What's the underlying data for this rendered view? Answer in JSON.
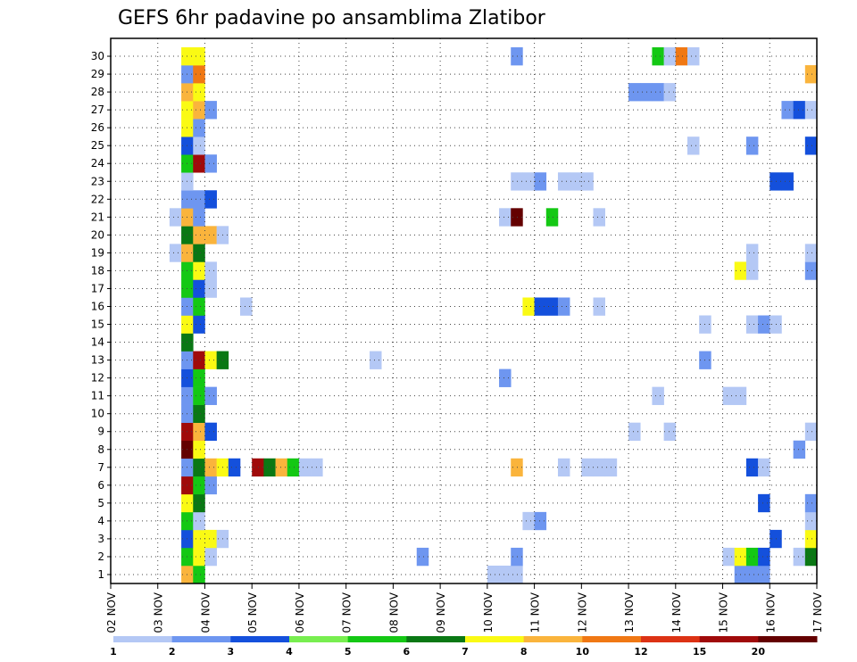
{
  "chart_data": {
    "type": "heatmap",
    "title": "GEFS 6hr padavine po ansamblima Zlatibor",
    "xlabel": "",
    "ylabel": "",
    "x_ticks": [
      "02 NOV",
      "03 NOV",
      "04 NOV",
      "05 NOV",
      "06 NOV",
      "07 NOV",
      "08 NOV",
      "09 NOV",
      "10 NOV",
      "11 NOV",
      "12 NOV",
      "13 NOV",
      "14 NOV",
      "15 NOV",
      "16 NOV",
      "17 NOV"
    ],
    "y_ticks": [
      "1",
      "2",
      "3",
      "4",
      "5",
      "6",
      "7",
      "8",
      "9",
      "10",
      "11",
      "12",
      "13",
      "14",
      "15",
      "16",
      "17",
      "18",
      "19",
      "20",
      "21",
      "22",
      "23",
      "24",
      "25",
      "26",
      "27",
      "28",
      "29",
      "30"
    ],
    "x_range_steps": [
      0,
      60
    ],
    "y_range_members": [
      0,
      30
    ],
    "step_hours": 6,
    "legend": {
      "labels": [
        "1",
        "2",
        "3",
        "4",
        "5",
        "6",
        "7",
        "8",
        "10",
        "12",
        "15",
        "20"
      ],
      "colors": [
        "#b4c8f5",
        "#6e96f0",
        "#1450dc",
        "#78ee50",
        "#14c814",
        "#0a7814",
        "#fafa14",
        "#fab43c",
        "#f07814",
        "#dc3214",
        "#a00a0a",
        "#640000"
      ]
    },
    "cells": [
      {
        "m": 0,
        "s": 6,
        "v": 8
      },
      {
        "m": 0,
        "s": 7,
        "v": 5
      },
      {
        "m": 0,
        "s": 32,
        "v": 1
      },
      {
        "m": 0,
        "s": 33,
        "v": 1
      },
      {
        "m": 0,
        "s": 34,
        "v": 1
      },
      {
        "m": 0,
        "s": 53,
        "v": 2
      },
      {
        "m": 0,
        "s": 54,
        "v": 2
      },
      {
        "m": 0,
        "s": 55,
        "v": 2
      },
      {
        "m": 1,
        "s": 6,
        "v": 5
      },
      {
        "m": 1,
        "s": 7,
        "v": 7
      },
      {
        "m": 1,
        "s": 8,
        "v": 1
      },
      {
        "m": 1,
        "s": 26,
        "v": 2
      },
      {
        "m": 1,
        "s": 34,
        "v": 2
      },
      {
        "m": 1,
        "s": 52,
        "v": 1
      },
      {
        "m": 1,
        "s": 53,
        "v": 7
      },
      {
        "m": 1,
        "s": 54,
        "v": 5
      },
      {
        "m": 1,
        "s": 55,
        "v": 3
      },
      {
        "m": 1,
        "s": 58,
        "v": 1
      },
      {
        "m": 1,
        "s": 59,
        "v": 6
      },
      {
        "m": 2,
        "s": 6,
        "v": 3
      },
      {
        "m": 2,
        "s": 7,
        "v": 7
      },
      {
        "m": 2,
        "s": 8,
        "v": 7
      },
      {
        "m": 2,
        "s": 9,
        "v": 1
      },
      {
        "m": 2,
        "s": 56,
        "v": 3
      },
      {
        "m": 2,
        "s": 59,
        "v": 7
      },
      {
        "m": 3,
        "s": 6,
        "v": 5
      },
      {
        "m": 3,
        "s": 7,
        "v": 1
      },
      {
        "m": 3,
        "s": 35,
        "v": 1
      },
      {
        "m": 3,
        "s": 36,
        "v": 2
      },
      {
        "m": 3,
        "s": 59,
        "v": 1
      },
      {
        "m": 4,
        "s": 6,
        "v": 7
      },
      {
        "m": 4,
        "s": 7,
        "v": 6
      },
      {
        "m": 4,
        "s": 55,
        "v": 3
      },
      {
        "m": 4,
        "s": 59,
        "v": 2
      },
      {
        "m": 5,
        "s": 6,
        "v": 15
      },
      {
        "m": 5,
        "s": 7,
        "v": 5
      },
      {
        "m": 5,
        "s": 8,
        "v": 2
      },
      {
        "m": 6,
        "s": 6,
        "v": 2
      },
      {
        "m": 6,
        "s": 7,
        "v": 6
      },
      {
        "m": 6,
        "s": 8,
        "v": 8
      },
      {
        "m": 6,
        "s": 9,
        "v": 7
      },
      {
        "m": 6,
        "s": 10,
        "v": 3
      },
      {
        "m": 6,
        "s": 12,
        "v": 15
      },
      {
        "m": 6,
        "s": 13,
        "v": 6
      },
      {
        "m": 6,
        "s": 14,
        "v": 8
      },
      {
        "m": 6,
        "s": 15,
        "v": 5
      },
      {
        "m": 6,
        "s": 16,
        "v": 1
      },
      {
        "m": 6,
        "s": 17,
        "v": 1
      },
      {
        "m": 6,
        "s": 34,
        "v": 8
      },
      {
        "m": 6,
        "s": 38,
        "v": 1
      },
      {
        "m": 6,
        "s": 40,
        "v": 1
      },
      {
        "m": 6,
        "s": 41,
        "v": 1
      },
      {
        "m": 6,
        "s": 42,
        "v": 1
      },
      {
        "m": 6,
        "s": 54,
        "v": 3
      },
      {
        "m": 6,
        "s": 55,
        "v": 1
      },
      {
        "m": 7,
        "s": 6,
        "v": 20
      },
      {
        "m": 7,
        "s": 7,
        "v": 7.5
      },
      {
        "m": 7,
        "s": 58,
        "v": 2
      },
      {
        "m": 8,
        "s": 6,
        "v": 15
      },
      {
        "m": 8,
        "s": 7,
        "v": 8
      },
      {
        "m": 8,
        "s": 8,
        "v": 3
      },
      {
        "m": 8,
        "s": 44,
        "v": 1
      },
      {
        "m": 8,
        "s": 47,
        "v": 1
      },
      {
        "m": 8,
        "s": 59,
        "v": 1
      },
      {
        "m": 9,
        "s": 6,
        "v": 2
      },
      {
        "m": 9,
        "s": 7,
        "v": 6
      },
      {
        "m": 10,
        "s": 6,
        "v": 2
      },
      {
        "m": 10,
        "s": 7,
        "v": 5
      },
      {
        "m": 10,
        "s": 8,
        "v": 2
      },
      {
        "m": 10,
        "s": 46,
        "v": 1
      },
      {
        "m": 10,
        "s": 52,
        "v": 1
      },
      {
        "m": 10,
        "s": 53,
        "v": 1
      },
      {
        "m": 11,
        "s": 6,
        "v": 3
      },
      {
        "m": 11,
        "s": 7,
        "v": 5
      },
      {
        "m": 11,
        "s": 33,
        "v": 2
      },
      {
        "m": 12,
        "s": 6,
        "v": 2
      },
      {
        "m": 12,
        "s": 7,
        "v": 15
      },
      {
        "m": 12,
        "s": 8,
        "v": 7
      },
      {
        "m": 12,
        "s": 9,
        "v": 6
      },
      {
        "m": 12,
        "s": 22,
        "v": 1
      },
      {
        "m": 12,
        "s": 50,
        "v": 2
      },
      {
        "m": 13,
        "s": 6,
        "v": 6
      },
      {
        "m": 14,
        "s": 6,
        "v": 7
      },
      {
        "m": 14,
        "s": 7,
        "v": 3
      },
      {
        "m": 14,
        "s": 50,
        "v": 1
      },
      {
        "m": 14,
        "s": 54,
        "v": 1
      },
      {
        "m": 14,
        "s": 55,
        "v": 2
      },
      {
        "m": 14,
        "s": 56,
        "v": 1
      },
      {
        "m": 15,
        "s": 6,
        "v": 2
      },
      {
        "m": 15,
        "s": 7,
        "v": 5
      },
      {
        "m": 15,
        "s": 11,
        "v": 1
      },
      {
        "m": 15,
        "s": 35,
        "v": 7
      },
      {
        "m": 15,
        "s": 36,
        "v": 3
      },
      {
        "m": 15,
        "s": 37,
        "v": 3
      },
      {
        "m": 15,
        "s": 38,
        "v": 2
      },
      {
        "m": 15,
        "s": 41,
        "v": 1
      },
      {
        "m": 16,
        "s": 6,
        "v": 5
      },
      {
        "m": 16,
        "s": 7,
        "v": 3
      },
      {
        "m": 16,
        "s": 8,
        "v": 1
      },
      {
        "m": 17,
        "s": 6,
        "v": 5
      },
      {
        "m": 17,
        "s": 7,
        "v": 7.5
      },
      {
        "m": 17,
        "s": 8,
        "v": 1
      },
      {
        "m": 17,
        "s": 53,
        "v": 7
      },
      {
        "m": 17,
        "s": 54,
        "v": 1
      },
      {
        "m": 17,
        "s": 59,
        "v": 2
      },
      {
        "m": 18,
        "s": 5,
        "v": 1
      },
      {
        "m": 18,
        "s": 6,
        "v": 8
      },
      {
        "m": 18,
        "s": 7,
        "v": 6
      },
      {
        "m": 18,
        "s": 54,
        "v": 1
      },
      {
        "m": 18,
        "s": 59,
        "v": 1
      },
      {
        "m": 19,
        "s": 6,
        "v": 6
      },
      {
        "m": 19,
        "s": 7,
        "v": 8
      },
      {
        "m": 19,
        "s": 8,
        "v": 8
      },
      {
        "m": 19,
        "s": 9,
        "v": 1
      },
      {
        "m": 20,
        "s": 5,
        "v": 1
      },
      {
        "m": 20,
        "s": 6,
        "v": 8
      },
      {
        "m": 20,
        "s": 7,
        "v": 2
      },
      {
        "m": 20,
        "s": 33,
        "v": 1
      },
      {
        "m": 20,
        "s": 34,
        "v": 20
      },
      {
        "m": 20,
        "s": 37,
        "v": 5
      },
      {
        "m": 20,
        "s": 41,
        "v": 1
      },
      {
        "m": 21,
        "s": 6,
        "v": 2
      },
      {
        "m": 21,
        "s": 7,
        "v": 2
      },
      {
        "m": 21,
        "s": 8,
        "v": 3
      },
      {
        "m": 22,
        "s": 6,
        "v": 1
      },
      {
        "m": 22,
        "s": 34,
        "v": 1
      },
      {
        "m": 22,
        "s": 35,
        "v": 1
      },
      {
        "m": 22,
        "s": 36,
        "v": 2
      },
      {
        "m": 22,
        "s": 38,
        "v": 1
      },
      {
        "m": 22,
        "s": 39,
        "v": 1
      },
      {
        "m": 22,
        "s": 40,
        "v": 1
      },
      {
        "m": 22,
        "s": 56,
        "v": 3
      },
      {
        "m": 22,
        "s": 57,
        "v": 3
      },
      {
        "m": 23,
        "s": 6,
        "v": 5
      },
      {
        "m": 23,
        "s": 7,
        "v": 15
      },
      {
        "m": 23,
        "s": 8,
        "v": 2
      },
      {
        "m": 24,
        "s": 6,
        "v": 3
      },
      {
        "m": 24,
        "s": 7,
        "v": 1
      },
      {
        "m": 24,
        "s": 49,
        "v": 1
      },
      {
        "m": 24,
        "s": 54,
        "v": 2
      },
      {
        "m": 24,
        "s": 59,
        "v": 3
      },
      {
        "m": 25,
        "s": 6,
        "v": 7
      },
      {
        "m": 25,
        "s": 7,
        "v": 2
      },
      {
        "m": 26,
        "s": 6,
        "v": 7.5
      },
      {
        "m": 26,
        "s": 7,
        "v": 8
      },
      {
        "m": 26,
        "s": 8,
        "v": 2
      },
      {
        "m": 26,
        "s": 57,
        "v": 2
      },
      {
        "m": 26,
        "s": 58,
        "v": 3
      },
      {
        "m": 26,
        "s": 59,
        "v": 1
      },
      {
        "m": 27,
        "s": 6,
        "v": 8
      },
      {
        "m": 27,
        "s": 7,
        "v": 7
      },
      {
        "m": 27,
        "s": 44,
        "v": 2
      },
      {
        "m": 27,
        "s": 45,
        "v": 2
      },
      {
        "m": 27,
        "s": 46,
        "v": 2
      },
      {
        "m": 27,
        "s": 47,
        "v": 1
      },
      {
        "m": 28,
        "s": 6,
        "v": 2
      },
      {
        "m": 28,
        "s": 7,
        "v": 10
      },
      {
        "m": 28,
        "s": 59,
        "v": 8
      },
      {
        "m": 29,
        "s": 6,
        "v": 7
      },
      {
        "m": 29,
        "s": 7,
        "v": 7
      },
      {
        "m": 29,
        "s": 34,
        "v": 2
      },
      {
        "m": 29,
        "s": 46,
        "v": 5
      },
      {
        "m": 29,
        "s": 47,
        "v": 1
      },
      {
        "m": 29,
        "s": 48,
        "v": 10
      },
      {
        "m": 29,
        "s": 49,
        "v": 1
      }
    ]
  }
}
